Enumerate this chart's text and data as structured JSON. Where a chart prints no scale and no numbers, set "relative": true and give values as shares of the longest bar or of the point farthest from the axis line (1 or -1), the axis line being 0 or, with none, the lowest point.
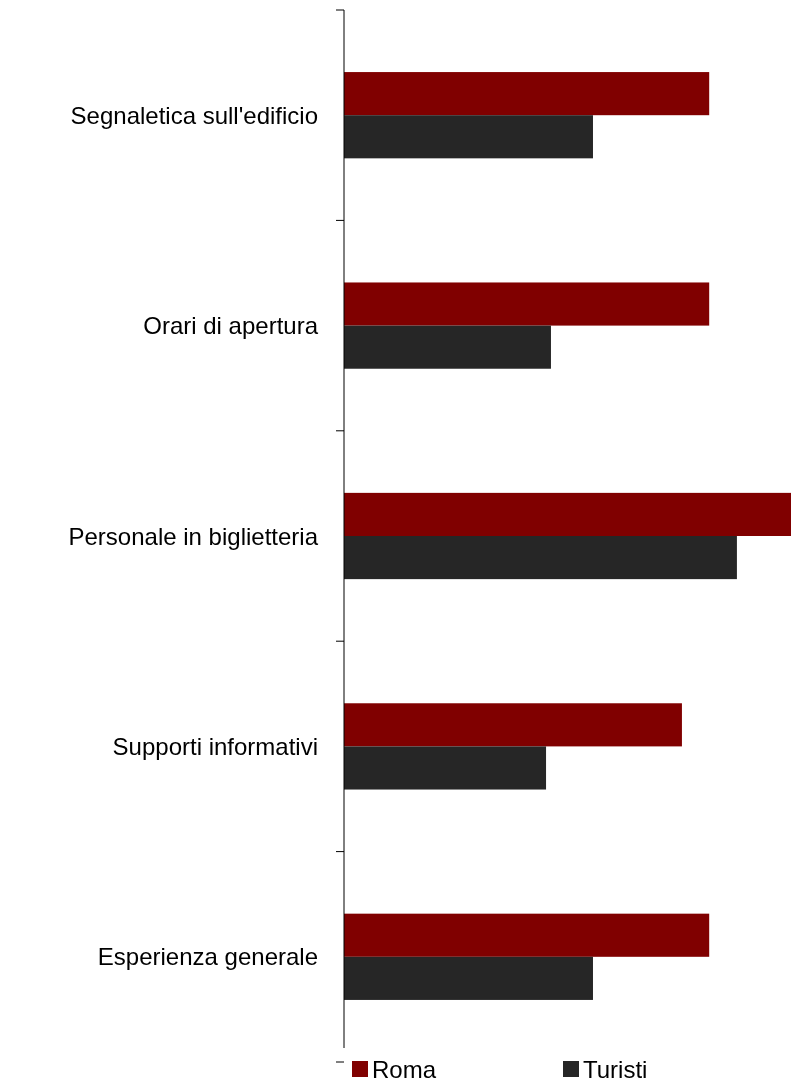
{
  "chart_data": {
    "type": "bar",
    "orientation": "horizontal",
    "relative": true,
    "categories": [
      "Segnaletica sull'edificio",
      "Orari di apertura",
      "Personale in biglietteria",
      "Supporti informativi",
      "Esperienza generale"
    ],
    "series": [
      {
        "name": "Roma",
        "color": "#800000",
        "values": [
          0.817,
          0.817,
          1,
          0.756,
          0.817
        ]
      },
      {
        "name": "Turisti",
        "color": "#262626",
        "values": [
          0.557,
          0.463,
          0.879,
          0.452,
          0.557
        ]
      }
    ],
    "legend": "bottom"
  }
}
